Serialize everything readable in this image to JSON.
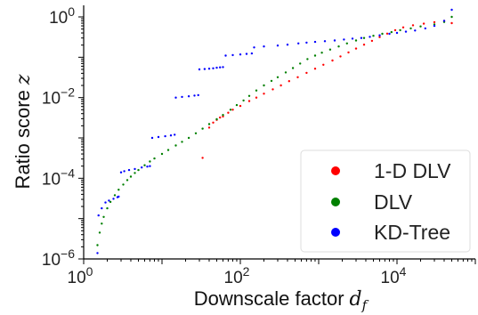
{
  "chart_data": {
    "type": "scatter",
    "title": "",
    "xlabel": "Downscale factor",
    "xlabel_symbol": "d",
    "xlabel_sub": "f",
    "ylabel": "Ratio score",
    "ylabel_symbol": "z",
    "x_scale": "log",
    "y_scale": "log",
    "xlim": [
      1,
      100000
    ],
    "ylim": [
      1e-06,
      2
    ],
    "x_ticks": [
      {
        "value": 1,
        "base": "10",
        "exp": "0"
      },
      {
        "value": 100,
        "base": "10",
        "exp": "2"
      },
      {
        "value": 10000,
        "base": "10",
        "exp": "4"
      }
    ],
    "y_ticks": [
      {
        "value": 1e-06,
        "base": "10",
        "exp": "−6"
      },
      {
        "value": 0.0001,
        "base": "10",
        "exp": "−4"
      },
      {
        "value": 0.01,
        "base": "10",
        "exp": "−2"
      },
      {
        "value": 1,
        "base": "10",
        "exp": "0"
      }
    ],
    "grid": false,
    "legend_position": "bottom-right",
    "series": [
      {
        "name": "1-D DLV",
        "color": "#ff0000",
        "points": [
          [
            33,
            0.00032
          ],
          [
            40,
            0.0018
          ],
          [
            45,
            0.0024
          ],
          [
            50,
            0.0028
          ],
          [
            55,
            0.0032
          ],
          [
            60,
            0.0034
          ],
          [
            70,
            0.0042
          ],
          [
            80,
            0.005
          ],
          [
            100,
            0.0062
          ],
          [
            130,
            0.0082
          ],
          [
            160,
            0.01
          ],
          [
            200,
            0.0125
          ],
          [
            260,
            0.016
          ],
          [
            330,
            0.02
          ],
          [
            420,
            0.0255
          ],
          [
            540,
            0.032
          ],
          [
            700,
            0.041
          ],
          [
            900,
            0.052
          ],
          [
            1150,
            0.065
          ],
          [
            1500,
            0.083
          ],
          [
            1900,
            0.105
          ],
          [
            2400,
            0.132
          ],
          [
            3000,
            0.164
          ],
          [
            3800,
            0.205
          ],
          [
            4800,
            0.255
          ],
          [
            6000,
            0.315
          ],
          [
            7500,
            0.385
          ],
          [
            9500,
            0.47
          ],
          [
            12000,
            0.55
          ],
          [
            16000,
            0.62
          ],
          [
            22000,
            0.68
          ],
          [
            30000,
            0.74
          ],
          [
            40000,
            0.8
          ],
          [
            50000,
            0.7
          ]
        ]
      },
      {
        "name": "DLV",
        "color": "#008000",
        "points": [
          [
            1.5,
            2.2e-06
          ],
          [
            1.6,
            4.5e-06
          ],
          [
            1.7,
            7.5e-06
          ],
          [
            1.8,
            1.1e-05
          ],
          [
            2,
            1.8e-05
          ],
          [
            2.2,
            2.6e-05
          ],
          [
            2.5,
            3.8e-05
          ],
          [
            2.8,
            5.2e-05
          ],
          [
            3.2,
            7e-05
          ],
          [
            3.6,
            9e-05
          ],
          [
            4,
            0.00011
          ],
          [
            4.5,
            0.000135
          ],
          [
            5,
            0.00016
          ],
          [
            6,
            0.00021
          ],
          [
            7,
            0.00026
          ],
          [
            8,
            0.00031
          ],
          [
            10,
            0.0004
          ],
          [
            12,
            0.0005
          ],
          [
            15,
            0.00065
          ],
          [
            18,
            0.0008
          ],
          [
            22,
            0.001
          ],
          [
            27,
            0.0013
          ],
          [
            33,
            0.0017
          ],
          [
            40,
            0.0022
          ],
          [
            50,
            0.0029
          ],
          [
            60,
            0.0037
          ],
          [
            75,
            0.005
          ],
          [
            90,
            0.0065
          ],
          [
            110,
            0.0085
          ],
          [
            130,
            0.011
          ],
          [
            160,
            0.015
          ],
          [
            200,
            0.02
          ],
          [
            250,
            0.026
          ],
          [
            300,
            0.032
          ],
          [
            380,
            0.042
          ],
          [
            470,
            0.054
          ],
          [
            580,
            0.07
          ],
          [
            720,
            0.09
          ],
          [
            900,
            0.11
          ],
          [
            1100,
            0.13
          ],
          [
            1400,
            0.155
          ],
          [
            1800,
            0.185
          ],
          [
            2300,
            0.22
          ],
          [
            3000,
            0.26
          ],
          [
            3800,
            0.3
          ],
          [
            5000,
            0.34
          ],
          [
            6500,
            0.38
          ],
          [
            8500,
            0.42
          ],
          [
            11000,
            0.47
          ],
          [
            15000,
            0.52
          ],
          [
            20000,
            0.58
          ],
          [
            30000,
            0.65
          ],
          [
            40000,
            0.75
          ],
          [
            50000,
            1.0
          ]
        ]
      },
      {
        "name": "KD-Tree",
        "color": "#0000ff",
        "points": [
          [
            1.5,
            1.4e-06
          ],
          [
            1.55,
            1.2e-05
          ],
          [
            1.7,
            1.8e-05
          ],
          [
            1.9,
            2.5e-05
          ],
          [
            2.1,
            2.8e-05
          ],
          [
            2.4,
            3.1e-05
          ],
          [
            2.7,
            3.4e-05
          ],
          [
            2.8,
            3.5e-05
          ],
          [
            3,
            0.00014
          ],
          [
            3.3,
            0.00015
          ],
          [
            3.8,
            0.00016
          ],
          [
            4.5,
            0.00017
          ],
          [
            5.5,
            0.000185
          ],
          [
            6.5,
            0.000195
          ],
          [
            7,
            0.0002
          ],
          [
            7.5,
            0.001
          ],
          [
            9,
            0.00105
          ],
          [
            11,
            0.0011
          ],
          [
            13,
            0.00115
          ],
          [
            14.5,
            0.0012
          ],
          [
            15,
            0.01
          ],
          [
            18,
            0.0104
          ],
          [
            22,
            0.0108
          ],
          [
            26,
            0.0112
          ],
          [
            29,
            0.0115
          ],
          [
            30,
            0.05
          ],
          [
            35,
            0.051
          ],
          [
            40,
            0.052
          ],
          [
            45,
            0.053
          ],
          [
            50,
            0.055
          ],
          [
            55,
            0.056
          ],
          [
            60,
            0.057
          ],
          [
            65,
            0.11
          ],
          [
            80,
            0.113
          ],
          [
            100,
            0.117
          ],
          [
            120,
            0.121
          ],
          [
            140,
            0.124
          ],
          [
            150,
            0.175
          ],
          [
            200,
            0.185
          ],
          [
            300,
            0.195
          ],
          [
            400,
            0.205
          ],
          [
            550,
            0.22
          ],
          [
            700,
            0.23
          ],
          [
            900,
            0.24
          ],
          [
            1200,
            0.25
          ],
          [
            1600,
            0.26
          ],
          [
            2100,
            0.275
          ],
          [
            2700,
            0.29
          ],
          [
            3500,
            0.3
          ],
          [
            4500,
            0.32
          ],
          [
            6000,
            0.35
          ],
          [
            8000,
            0.38
          ],
          [
            10000,
            0.4
          ],
          [
            13000,
            0.43
          ],
          [
            17000,
            0.46
          ],
          [
            23000,
            0.52
          ],
          [
            30000,
            0.6
          ],
          [
            40000,
            0.8
          ],
          [
            50000,
            1.5
          ]
        ]
      }
    ]
  }
}
